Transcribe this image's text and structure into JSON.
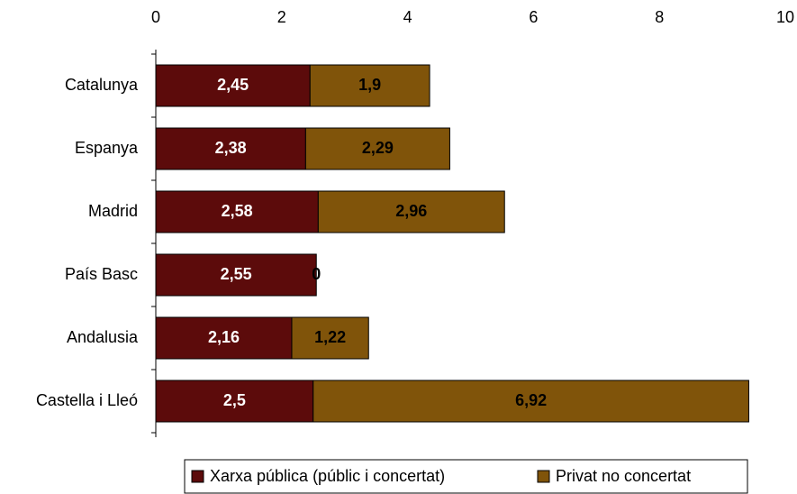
{
  "chart_data": {
    "type": "stacked_barh",
    "categories": [
      "Catalunya",
      "Espanya",
      "Madrid",
      "País Basc",
      "Andalusia",
      "Castella i Lleó"
    ],
    "series": [
      {
        "name": "Xarxa pública (públic i concertat)",
        "color": "#5c0b0b",
        "values": [
          2.45,
          2.38,
          2.58,
          2.55,
          2.16,
          2.5
        ],
        "value_labels": [
          "2,45",
          "2,38",
          "2,58",
          "2,55",
          "2,16",
          "2,5"
        ]
      },
      {
        "name": "Privat no concertat",
        "color": "#80540a",
        "values": [
          1.9,
          2.29,
          2.96,
          0,
          1.22,
          6.92
        ],
        "value_labels": [
          "1,9",
          "2,29",
          "2,96",
          "0",
          "1,22",
          "6,92"
        ]
      }
    ],
    "xlim": [
      0,
      10
    ],
    "xticks": [
      0,
      2,
      4,
      6,
      8,
      10
    ],
    "legend": "bottom"
  }
}
